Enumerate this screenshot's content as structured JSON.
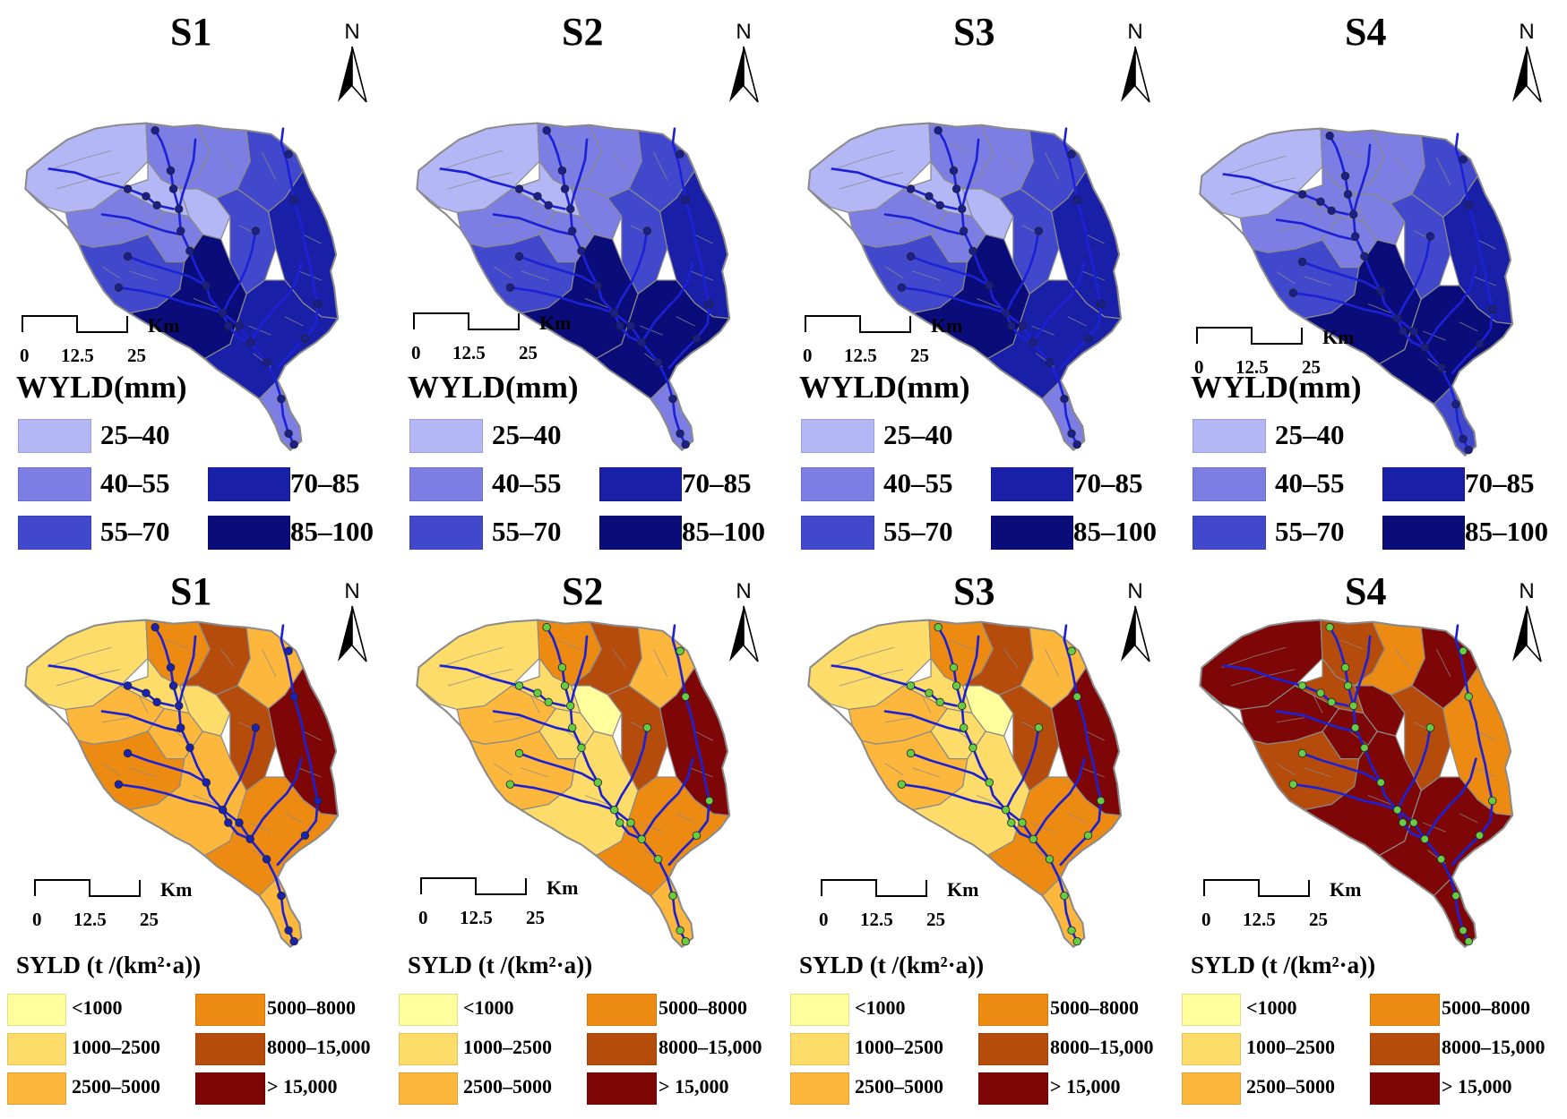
{
  "wyld_panels": [
    {
      "title": "S1",
      "north_label": "N",
      "scale_unit": "Km",
      "scale_ticks": [
        "0",
        "12.5",
        "25"
      ],
      "legend_title": "WYLD(mm)",
      "zone_classes": [
        0,
        1,
        1,
        1,
        2,
        0,
        1,
        0,
        2,
        3,
        2,
        4,
        3,
        1
      ]
    },
    {
      "title": "S2",
      "north_label": "N",
      "scale_unit": "Km",
      "scale_ticks": [
        "0",
        "12.5",
        "25"
      ],
      "legend_title": "WYLD(mm)",
      "zone_classes": [
        0,
        1,
        1,
        1,
        2,
        0,
        1,
        1,
        2,
        3,
        2,
        4,
        4,
        1
      ]
    },
    {
      "title": "S3",
      "north_label": "N",
      "scale_unit": "Km",
      "scale_ticks": [
        "0",
        "12.5",
        "25"
      ],
      "legend_title": "WYLD(mm)",
      "zone_classes": [
        0,
        1,
        1,
        1,
        2,
        0,
        1,
        0,
        2,
        3,
        2,
        4,
        3,
        1
      ]
    },
    {
      "title": "S4",
      "north_label": "N",
      "scale_unit": "Km",
      "scale_ticks": [
        "0",
        "12.5",
        "25"
      ],
      "legend_title": "WYLD(mm)",
      "zone_classes": [
        0,
        1,
        1,
        1,
        2,
        1,
        1,
        1,
        2,
        3,
        2,
        4,
        4,
        2
      ]
    }
  ],
  "syld_panels": [
    {
      "title": "S1",
      "north_label": "N",
      "scale_unit": "Km",
      "scale_ticks": [
        "0",
        "12.5",
        "25"
      ],
      "legend_title": "SYLD (t /(km²·a))",
      "zone_classes": [
        1,
        2,
        3,
        4,
        2,
        1,
        2,
        1,
        4,
        5,
        3,
        2,
        3,
        2
      ]
    },
    {
      "title": "S2",
      "north_label": "N",
      "scale_unit": "Km",
      "scale_ticks": [
        "0",
        "12.5",
        "25"
      ],
      "legend_title": "SYLD (t /(km²·a))",
      "zone_classes": [
        1,
        2,
        3,
        4,
        2,
        1,
        1,
        0,
        4,
        5,
        2,
        1,
        3,
        2
      ]
    },
    {
      "title": "S3",
      "north_label": "N",
      "scale_unit": "Km",
      "scale_ticks": [
        "0",
        "12.5",
        "25"
      ],
      "legend_title": "SYLD (t /(km²·a))",
      "zone_classes": [
        1,
        2,
        3,
        4,
        2,
        1,
        1,
        0,
        4,
        5,
        2,
        1,
        3,
        2
      ]
    },
    {
      "title": "S4",
      "north_label": "N",
      "scale_unit": "Km",
      "scale_ticks": [
        "0",
        "12.5",
        "25"
      ],
      "legend_title": "SYLD (t /(km²·a))",
      "zone_classes": [
        5,
        5,
        4,
        3,
        5,
        4,
        5,
        5,
        4,
        3,
        4,
        5,
        5,
        5
      ]
    }
  ],
  "wyld_legend": [
    {
      "label": "25–40",
      "color": "#b3b7f5"
    },
    {
      "label": "40–55",
      "color": "#7c7ee3"
    },
    {
      "label": "55–70",
      "color": "#4248cc"
    },
    {
      "label": "70–85",
      "color": "#1a1fa8"
    },
    {
      "label": "85–100",
      "color": "#0a0c7a"
    }
  ],
  "syld_legend": [
    {
      "label": "<1000",
      "color": "#fefe9c"
    },
    {
      "label": "1000–2500",
      "color": "#fddc6a"
    },
    {
      "label": "2500–5000",
      "color": "#fcb73c"
    },
    {
      "label": "5000–8000",
      "color": "#ed8a12"
    },
    {
      "label": "8000–15,000",
      "color": "#b64c0c"
    },
    {
      "label": "> 15,000",
      "color": "#7e0606"
    }
  ],
  "styles": {
    "river_color": "#1c22d4",
    "node_color_wyld": "#1a1f8a",
    "node_color_syld_s1": "#1a22b4",
    "node_color_syld": "#66cc44",
    "boundary_color": "#8a8a8a"
  }
}
